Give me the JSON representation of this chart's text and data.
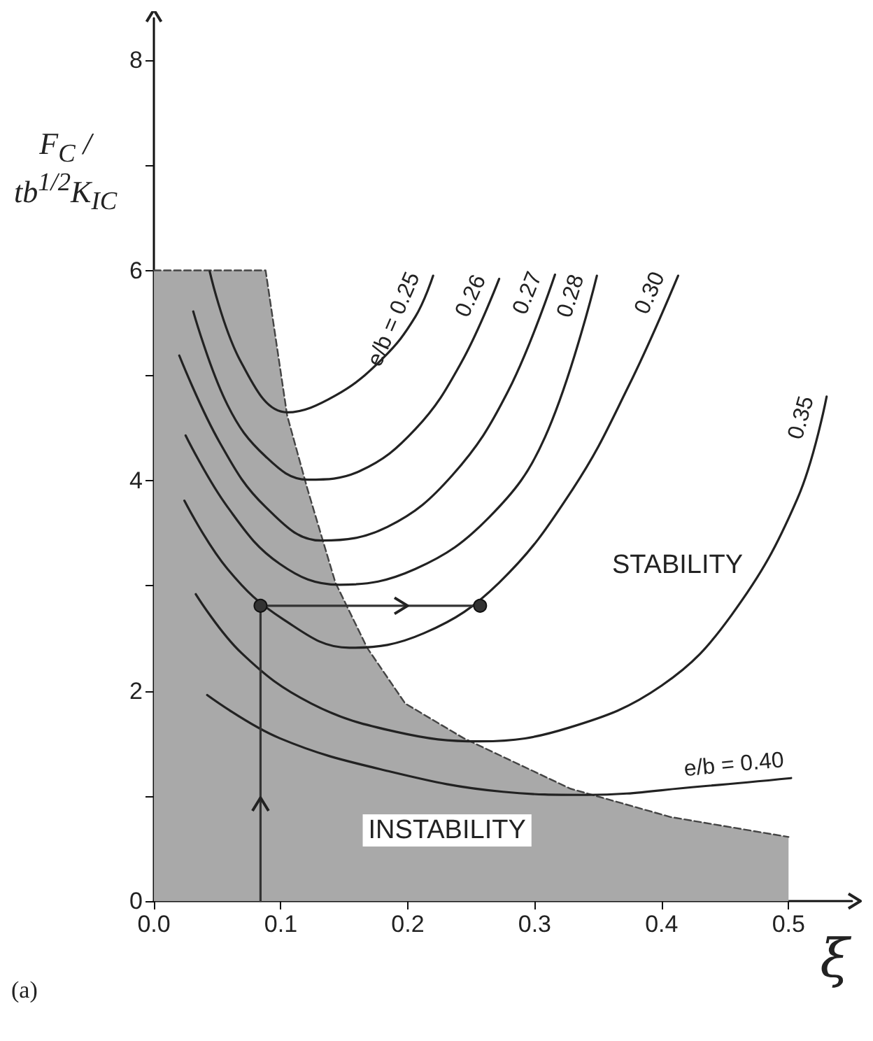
{
  "chart_data": {
    "type": "line",
    "xlabel": "ξ",
    "ylabel": "F$_{C}$ / tb$^{1/2}$K$_{IC}$",
    "xlim": [
      0,
      0.55
    ],
    "ylim": [
      0,
      8.4
    ],
    "xticks": [
      {
        "value": 0,
        "label": "0.0"
      },
      {
        "value": 0.1,
        "label": "0.1"
      },
      {
        "value": 0.2,
        "label": "0.2"
      },
      {
        "value": 0.3,
        "label": "0.3"
      },
      {
        "value": 0.4,
        "label": "0.4"
      },
      {
        "value": 0.5,
        "label": "0.5"
      }
    ],
    "yticks": [
      0,
      {
        "value": 1,
        "label": null
      },
      2,
      {
        "value": 3,
        "label": null
      },
      4,
      {
        "value": 5,
        "label": null
      },
      6,
      {
        "value": 7,
        "label": null
      },
      8
    ],
    "grid": false,
    "legend": false,
    "series": [
      {
        "type": "area",
        "color": "#a9a9a9",
        "line_style": "dashed",
        "marker": "none",
        "x": [
          0,
          0.088,
          0.105,
          0.121,
          0.143,
          0.168,
          0.198,
          0.244,
          0.328,
          0.407,
          0.5
        ],
        "values": [
          6,
          6,
          4.62,
          3.92,
          3.03,
          2.41,
          1.88,
          1.55,
          1.07,
          0.8,
          0.61
        ]
      },
      {
        "name": "e/b = 0.25",
        "color": "#222222",
        "marker": "none",
        "line_style": "solid",
        "x": [
          0.044,
          0.069,
          0.105,
          0.143,
          0.18,
          0.206,
          0.22
        ],
        "values": [
          5.99,
          5.12,
          4.65,
          4.81,
          5.16,
          5.56,
          5.95
        ]
      },
      {
        "name": "0.26",
        "color": "#222222",
        "marker": "none",
        "line_style": "solid",
        "x": [
          0.031,
          0.058,
          0.088,
          0.121,
          0.162,
          0.206,
          0.242,
          0.272
        ],
        "values": [
          5.61,
          4.72,
          4.23,
          4.01,
          4.09,
          4.49,
          5.12,
          5.92
        ]
      },
      {
        "name": "0.27",
        "color": "#222222",
        "marker": "none",
        "line_style": "solid",
        "x": [
          0.02,
          0.052,
          0.088,
          0.132,
          0.184,
          0.235,
          0.279,
          0.316
        ],
        "values": [
          5.19,
          4.36,
          3.75,
          3.43,
          3.56,
          4.05,
          4.85,
          5.96
        ]
      },
      {
        "name": "0.28",
        "color": "#222222",
        "marker": "none",
        "line_style": "solid",
        "x": [
          0.025,
          0.058,
          0.099,
          0.146,
          0.206,
          0.264,
          0.308,
          0.349
        ],
        "values": [
          4.43,
          3.75,
          3.21,
          3.01,
          3.16,
          3.65,
          4.41,
          5.95
        ]
      },
      {
        "name": "0.30",
        "color": "#222222",
        "marker": "none",
        "line_style": "solid",
        "x": [
          0.024,
          0.058,
          0.102,
          0.154,
          0.213,
          0.272,
          0.33,
          0.374,
          0.413
        ],
        "values": [
          3.81,
          3.16,
          2.68,
          2.41,
          2.55,
          3.03,
          3.92,
          4.9,
          5.95
        ]
      },
      {
        "name": "0.35",
        "color": "#222222",
        "marker": "none",
        "line_style": "solid",
        "x": [
          0.033,
          0.069,
          0.124,
          0.191,
          0.257,
          0.327,
          0.4,
          0.455,
          0.507,
          0.53
        ],
        "values": [
          2.92,
          2.36,
          1.88,
          1.61,
          1.52,
          1.65,
          2.05,
          2.72,
          3.83,
          4.8
        ]
      },
      {
        "name": "e/b = 0.40",
        "color": "#222222",
        "marker": "none",
        "line_style": "solid",
        "x": [
          0.042,
          0.099,
          0.187,
          0.275,
          0.341,
          0.43,
          0.502
        ],
        "values": [
          1.96,
          1.55,
          1.23,
          1.04,
          1.01,
          1.09,
          1.17
        ]
      },
      {
        "color": "#333333",
        "line_style": "solid",
        "x": [
          0.084,
          0.084
        ],
        "values": [
          0,
          2.81
        ]
      },
      {
        "color": "#333333",
        "marker": "circle",
        "line_style": "solid",
        "x": [
          0.084,
          0.257
        ],
        "values": [
          2.81,
          2.81
        ]
      }
    ],
    "annotations": [
      "STABILITY",
      "INSTABILITY",
      "(a)"
    ]
  }
}
